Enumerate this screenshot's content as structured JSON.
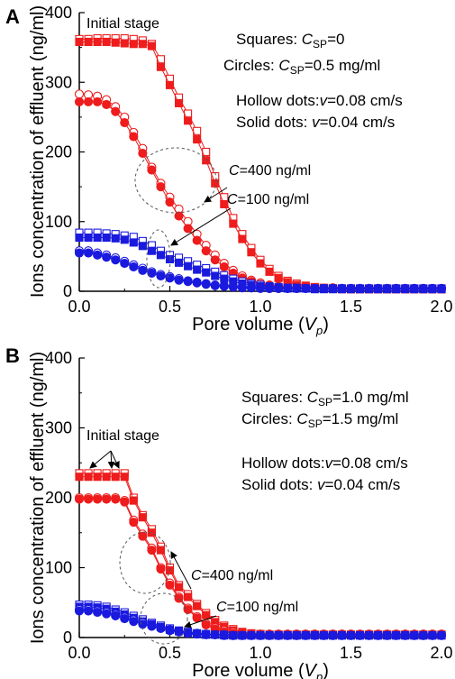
{
  "colors": {
    "red": "#ee1c1c",
    "blue": "#1a1adf",
    "axis": "#000000",
    "ellipse": "#555555"
  },
  "chart_data": [
    {
      "type": "scatter",
      "panel_label": "A",
      "xlabel": "Pore volume (",
      "xlabel_var": "V",
      "xlabel_sub": "p",
      "xlabel_end": ")",
      "ylabel": "Ions concentration of effluent (ng/ml)",
      "xlim": [
        0,
        2.0
      ],
      "ylim": [
        0,
        400
      ],
      "xticks": [
        "0.0",
        "0.5",
        "1.0",
        "1.5",
        "2.0"
      ],
      "yticks": [
        "0",
        "100",
        "200",
        "300",
        "400"
      ],
      "legend_lines": [
        {
          "pre": "Squares: ",
          "var": "C",
          "sub": "SP",
          "post": "=0"
        },
        {
          "pre": "Circles: ",
          "var": "C",
          "sub": "SP",
          "post": "=0.5 mg/ml"
        },
        {
          "pre": "Hollow dots:",
          "var": "v",
          "sub": "",
          "post": "=0.08 cm/s"
        },
        {
          "pre": "Solid dots:   ",
          "var": "v",
          "sub": "",
          "post": "=0.04 cm/s"
        }
      ],
      "annotations": [
        {
          "text": "Initial stage"
        },
        {
          "var": "C",
          "text": "=400 ng/ml"
        },
        {
          "var": "C",
          "text": "=100 ng/ml"
        }
      ],
      "x": [
        0.0,
        0.05,
        0.1,
        0.15,
        0.2,
        0.25,
        0.3,
        0.35,
        0.4,
        0.45,
        0.5,
        0.55,
        0.6,
        0.65,
        0.7,
        0.75,
        0.8,
        0.85,
        0.9,
        0.95,
        1.0,
        1.05,
        1.1,
        1.15,
        1.2,
        1.25,
        1.3,
        1.35,
        1.4,
        1.45,
        1.5,
        1.55,
        1.6,
        1.65,
        1.7,
        1.75,
        1.8,
        1.85,
        1.9,
        1.95,
        2.0
      ],
      "series": [
        {
          "marker": "square",
          "fill": "hollow",
          "color": "red",
          "values": [
            362,
            362,
            363,
            363,
            363,
            363,
            362,
            360,
            355,
            333,
            305,
            278,
            255,
            230,
            200,
            165,
            135,
            105,
            82,
            62,
            45,
            32,
            22,
            15,
            11,
            8,
            6,
            5,
            4,
            4,
            3,
            3,
            3,
            3,
            3,
            3,
            3,
            3,
            3,
            3,
            3
          ]
        },
        {
          "marker": "square",
          "fill": "solid",
          "color": "red",
          "values": [
            358,
            358,
            358,
            358,
            357,
            356,
            355,
            355,
            352,
            322,
            296,
            270,
            245,
            218,
            188,
            155,
            125,
            97,
            75,
            56,
            40,
            28,
            19,
            13,
            9,
            7,
            5,
            4,
            4,
            3,
            3,
            3,
            3,
            3,
            3,
            3,
            3,
            3,
            3,
            3,
            3
          ]
        },
        {
          "marker": "circle",
          "fill": "hollow",
          "color": "red",
          "values": [
            283,
            282,
            280,
            275,
            265,
            250,
            228,
            205,
            178,
            155,
            135,
            118,
            100,
            82,
            66,
            52,
            40,
            30,
            22,
            16,
            12,
            9,
            7,
            6,
            5,
            5,
            5,
            4,
            5,
            4,
            4,
            4,
            4,
            4,
            4,
            4,
            4,
            4,
            4,
            4,
            4
          ]
        },
        {
          "marker": "circle",
          "fill": "solid",
          "color": "red",
          "values": [
            272,
            272,
            272,
            268,
            258,
            242,
            222,
            198,
            174,
            150,
            128,
            108,
            90,
            73,
            58,
            45,
            35,
            26,
            19,
            14,
            10,
            8,
            6,
            5,
            4,
            4,
            4,
            4,
            4,
            4,
            4,
            4,
            4,
            4,
            4,
            4,
            4,
            4,
            4,
            4,
            4
          ]
        },
        {
          "marker": "square",
          "fill": "hollow",
          "color": "blue",
          "values": [
            84,
            84,
            84,
            83,
            82,
            80,
            78,
            72,
            66,
            58,
            52,
            48,
            43,
            38,
            33,
            28,
            23,
            18,
            14,
            11,
            9,
            7,
            6,
            5,
            5,
            4,
            4,
            4,
            4,
            4,
            4,
            4,
            4,
            4,
            4,
            4,
            4,
            4,
            4,
            4,
            4
          ]
        },
        {
          "marker": "square",
          "fill": "solid",
          "color": "blue",
          "values": [
            77,
            77,
            77,
            77,
            76,
            74,
            70,
            65,
            58,
            52,
            46,
            41,
            36,
            31,
            27,
            22,
            18,
            14,
            11,
            9,
            7,
            6,
            5,
            4,
            4,
            4,
            3,
            3,
            3,
            3,
            3,
            3,
            3,
            3,
            3,
            3,
            3,
            3,
            3,
            3,
            3
          ]
        },
        {
          "marker": "circle",
          "fill": "hollow",
          "color": "blue",
          "values": [
            58,
            58,
            55,
            52,
            48,
            43,
            38,
            33,
            28,
            24,
            21,
            18,
            15,
            13,
            11,
            9,
            8,
            7,
            6,
            5,
            5,
            4,
            4,
            4,
            4,
            4,
            4,
            4,
            4,
            4,
            4,
            4,
            4,
            4,
            4,
            4,
            4,
            4,
            4,
            4,
            4
          ]
        },
        {
          "marker": "circle",
          "fill": "solid",
          "color": "blue",
          "values": [
            55,
            55,
            52,
            49,
            45,
            40,
            35,
            30,
            26,
            22,
            19,
            16,
            14,
            12,
            10,
            8,
            7,
            6,
            5,
            5,
            4,
            4,
            4,
            4,
            4,
            4,
            4,
            4,
            4,
            4,
            4,
            4,
            4,
            4,
            4,
            4,
            4,
            4,
            4,
            4,
            4
          ]
        }
      ]
    },
    {
      "type": "scatter",
      "panel_label": "B",
      "xlabel": "Pore volume (",
      "xlabel_var": "V",
      "xlabel_sub": "p",
      "xlabel_end": ")",
      "ylabel": "Ions concentration of effluent (ng/ml)",
      "xlim": [
        0,
        2.0
      ],
      "ylim": [
        0,
        400
      ],
      "xticks": [
        "0.0",
        "0.5",
        "1.0",
        "1.5",
        "2.0"
      ],
      "yticks": [
        "0",
        "100",
        "200",
        "300",
        "400"
      ],
      "legend_lines": [
        {
          "pre": "Squares: ",
          "var": "C",
          "sub": "SP",
          "post": "=1.0 mg/ml"
        },
        {
          "pre": "Circles:   ",
          "var": "C",
          "sub": "SP",
          "post": "=1.5 mg/ml"
        },
        {
          "pre": "Hollow dots:",
          "var": "v",
          "sub": "",
          "post": "=0.08 cm/s"
        },
        {
          "pre": "Solid dots:   ",
          "var": "v",
          "sub": "",
          "post": "=0.04 cm/s"
        }
      ],
      "annotations": [
        {
          "text": "Initial stage"
        },
        {
          "var": "C",
          "text": "=400 ng/ml"
        },
        {
          "var": "C",
          "text": "=100 ng/ml"
        }
      ],
      "x": [
        0.0,
        0.05,
        0.1,
        0.15,
        0.2,
        0.25,
        0.3,
        0.35,
        0.4,
        0.45,
        0.5,
        0.55,
        0.6,
        0.65,
        0.7,
        0.75,
        0.8,
        0.85,
        0.9,
        0.95,
        1.0,
        1.05,
        1.1,
        1.15,
        1.2,
        1.25,
        1.3,
        1.35,
        1.4,
        1.45,
        1.5,
        1.55,
        1.6,
        1.65,
        1.7,
        1.75,
        1.8,
        1.85,
        1.9,
        1.95,
        2.0
      ],
      "series": [
        {
          "marker": "square",
          "fill": "hollow",
          "color": "red",
          "values": [
            235,
            235,
            235,
            235,
            235,
            235,
            200,
            175,
            155,
            130,
            100,
            75,
            62,
            48,
            35,
            25,
            17,
            12,
            8,
            6,
            5,
            4,
            4,
            4,
            4,
            4,
            4,
            4,
            4,
            4,
            4,
            4,
            4,
            4,
            4,
            4,
            4,
            4,
            4,
            4,
            4
          ]
        },
        {
          "marker": "square",
          "fill": "solid",
          "color": "red",
          "values": [
            230,
            230,
            230,
            230,
            230,
            230,
            196,
            172,
            150,
            125,
            96,
            72,
            58,
            45,
            32,
            22,
            15,
            10,
            7,
            5,
            4,
            4,
            4,
            4,
            4,
            4,
            4,
            4,
            4,
            4,
            4,
            4,
            4,
            4,
            4,
            4,
            4,
            4,
            4,
            4,
            4
          ]
        },
        {
          "marker": "circle",
          "fill": "hollow",
          "color": "red",
          "values": [
            200,
            200,
            200,
            200,
            200,
            196,
            168,
            148,
            128,
            100,
            78,
            58,
            42,
            30,
            20,
            14,
            10,
            8,
            6,
            5,
            5,
            5,
            5,
            5,
            5,
            5,
            5,
            5,
            5,
            5,
            5,
            5,
            5,
            5,
            5,
            5,
            5,
            5,
            5,
            5,
            5
          ]
        },
        {
          "marker": "circle",
          "fill": "solid",
          "color": "red",
          "values": [
            198,
            198,
            198,
            198,
            198,
            194,
            165,
            145,
            125,
            98,
            75,
            56,
            40,
            28,
            18,
            12,
            8,
            6,
            5,
            4,
            4,
            4,
            4,
            4,
            4,
            4,
            4,
            4,
            4,
            4,
            4,
            4,
            4,
            4,
            4,
            4,
            4,
            4,
            4,
            4,
            4
          ]
        },
        {
          "marker": "square",
          "fill": "hollow",
          "color": "blue",
          "values": [
            47,
            47,
            46,
            44,
            40,
            36,
            31,
            26,
            21,
            17,
            13,
            10,
            8,
            6,
            5,
            4,
            4,
            3,
            3,
            3,
            3,
            3,
            3,
            3,
            3,
            3,
            3,
            3,
            3,
            3,
            3,
            3,
            3,
            3,
            3,
            3,
            3,
            3,
            3,
            3,
            3
          ]
        },
        {
          "marker": "square",
          "fill": "solid",
          "color": "blue",
          "values": [
            44,
            44,
            43,
            41,
            37,
            33,
            28,
            23,
            19,
            15,
            11,
            9,
            7,
            5,
            4,
            4,
            3,
            3,
            3,
            3,
            3,
            3,
            3,
            3,
            3,
            3,
            3,
            3,
            3,
            3,
            3,
            3,
            3,
            3,
            3,
            3,
            3,
            3,
            3,
            3,
            3
          ]
        },
        {
          "marker": "circle",
          "fill": "hollow",
          "color": "blue",
          "values": [
            40,
            40,
            38,
            36,
            33,
            29,
            25,
            21,
            17,
            14,
            11,
            9,
            7,
            6,
            5,
            4,
            4,
            3,
            3,
            3,
            3,
            3,
            3,
            3,
            3,
            3,
            3,
            3,
            3,
            3,
            3,
            3,
            3,
            3,
            3,
            3,
            3,
            3,
            3,
            3,
            3
          ]
        },
        {
          "marker": "circle",
          "fill": "solid",
          "color": "blue",
          "values": [
            38,
            38,
            36,
            34,
            31,
            27,
            23,
            19,
            16,
            13,
            10,
            8,
            6,
            5,
            4,
            4,
            3,
            3,
            3,
            3,
            3,
            3,
            3,
            3,
            3,
            3,
            3,
            3,
            3,
            3,
            3,
            3,
            3,
            3,
            3,
            3,
            3,
            3,
            3,
            3,
            3
          ]
        }
      ]
    }
  ]
}
